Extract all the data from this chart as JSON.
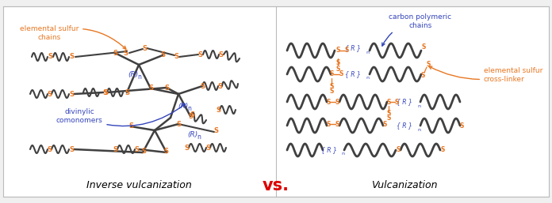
{
  "figsize": [
    6.96,
    2.57
  ],
  "dpi": 100,
  "bg_color": "#f0f0f0",
  "panel_color": "#ffffff",
  "border_color": "#bbbbbb",
  "title_left": "Inverse vulcanization",
  "title_right": "Vulcanization",
  "vs_text": "vs.",
  "vs_color": "#dd0000",
  "sulfur_color": "#e87722",
  "carbon_color": "#404040",
  "blue_color": "#3344bb",
  "title_fontsize": 9,
  "annot_fontsize": 6.5,
  "label_left_1": "elemental sulfur\nchains",
  "label_left_2": "divinylic\ncomonomers",
  "label_right_1": "carbon polymeric\nchains",
  "label_right_2": "elemental sulfur\ncross-linker"
}
